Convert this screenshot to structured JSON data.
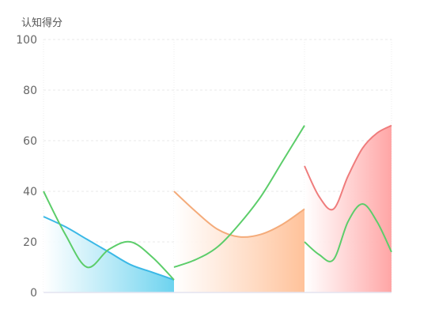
{
  "chart_data": {
    "type": "area",
    "ylabel": "认知得分",
    "ylim": [
      0,
      100
    ],
    "yticks": [
      "0",
      "20",
      "40",
      "60",
      "80",
      "100"
    ],
    "grid": true,
    "segments": [
      {
        "colors": {
          "fill_start": "#ffffff",
          "fill_end": "#6dd3ef",
          "line": "#3ab8e6"
        },
        "area_values": [
          30,
          26,
          21,
          16,
          11,
          8,
          5
        ],
        "green_values": [
          40,
          23,
          10,
          17,
          20,
          14,
          5
        ]
      },
      {
        "colors": {
          "fill_start": "#ffffff",
          "fill_end": "#ffc29a",
          "line": "#f4ab7a"
        },
        "area_values": [
          40,
          32,
          25,
          22,
          23,
          27,
          33
        ],
        "green_values": [
          10,
          13,
          18,
          27,
          38,
          52,
          66
        ]
      },
      {
        "colors": {
          "fill_start": "#ffffff",
          "fill_end": "#ffa5a5",
          "line": "#ef7c7c"
        },
        "area_values": [
          50,
          38,
          33,
          46,
          57,
          63,
          66
        ],
        "green_values": [
          20,
          15,
          13,
          28,
          35,
          28,
          16
        ]
      }
    ],
    "green_color": "#5ccd6a"
  }
}
